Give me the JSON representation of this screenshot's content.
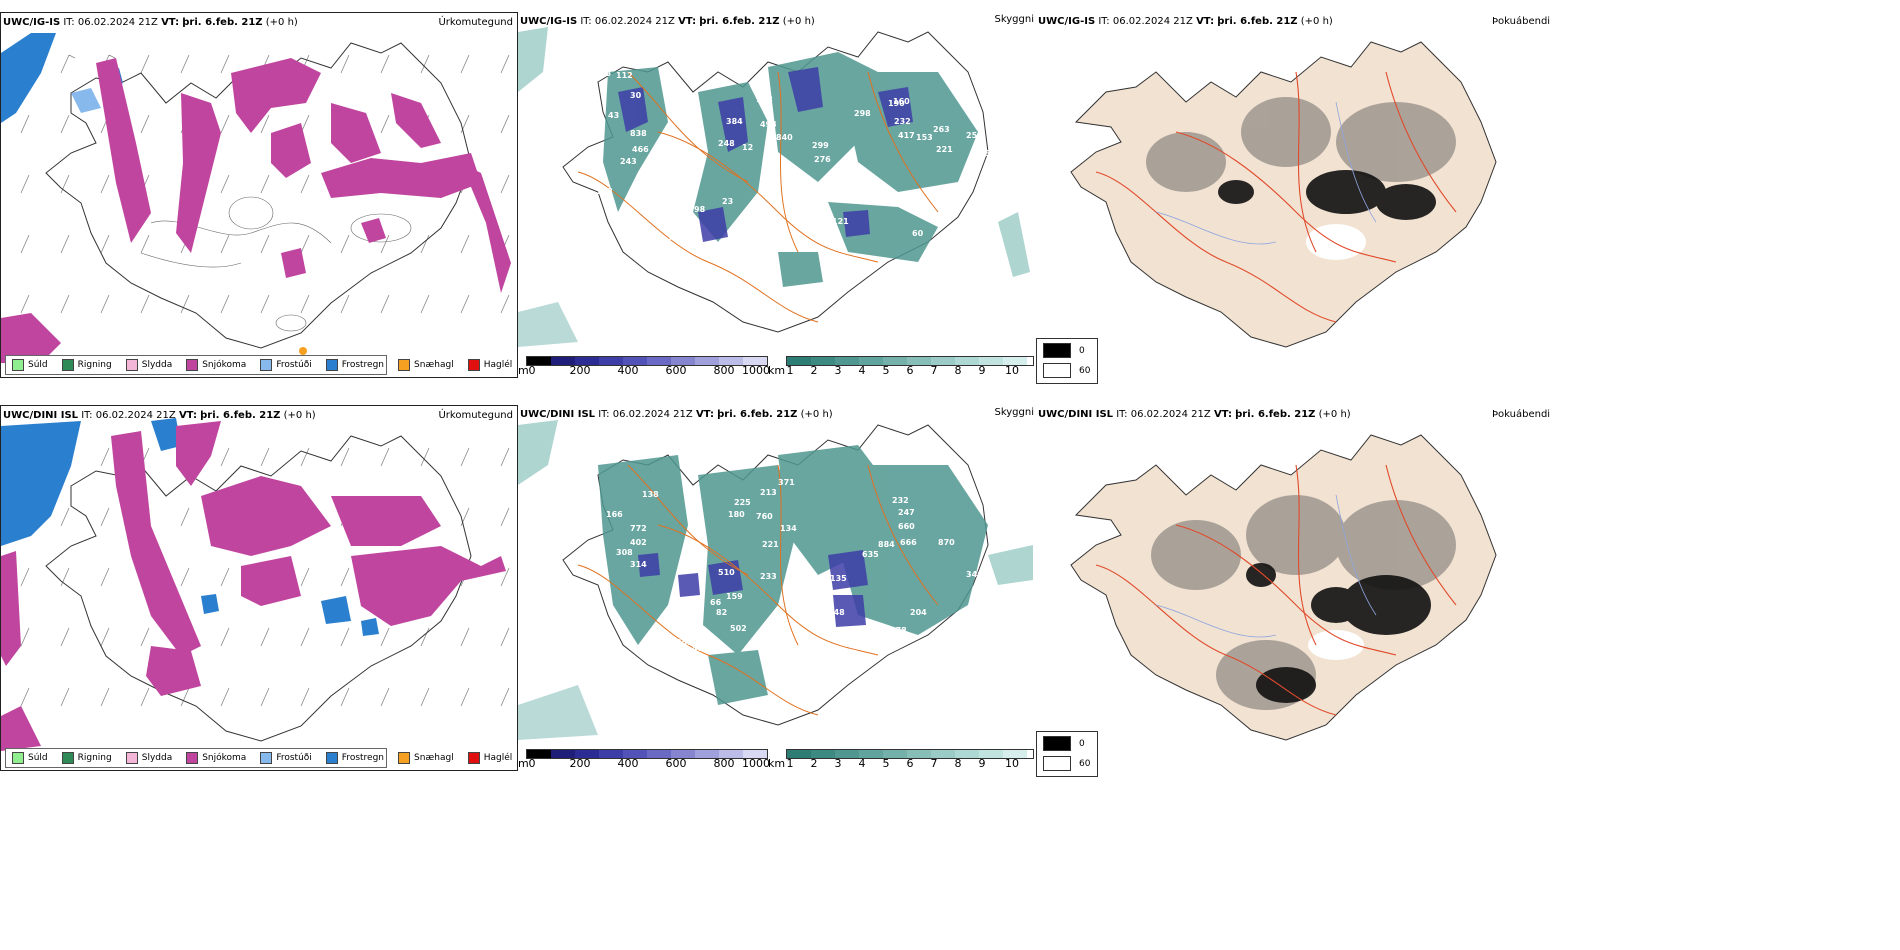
{
  "rows": [
    {
      "model": "UWC/IG-IS",
      "it_label": "IT:",
      "it_value": "06.02.2024 21Z",
      "vt_label": "VT:",
      "vt_value": "þri. 6.feb. 21Z",
      "lead": "(+0 h)",
      "p1_title": "Úrkomutegund",
      "p2_title": "Skyggni",
      "p3_title": "Þokuábendi",
      "cloud_labels": [
        "73",
        "112",
        "30",
        "43",
        "838",
        "466",
        "243",
        "128",
        "41",
        "72",
        "98",
        "23",
        "188",
        "384",
        "493",
        "840",
        "248",
        "299",
        "276",
        "12",
        "488",
        "121",
        "42",
        "160",
        "190",
        "298",
        "232",
        "417",
        "153",
        "251",
        "263",
        "221",
        "183",
        "60"
      ]
    },
    {
      "model": "UWC/DINI ISL",
      "it_label": "IT:",
      "it_value": "06.02.2024 21Z",
      "vt_label": "VT:",
      "vt_value": "þri. 6.feb. 21Z",
      "lead": "(+0 h)",
      "p1_title": "Úrkomutegund",
      "p2_title": "Skyggni",
      "p3_title": "Þokuábendi",
      "cloud_labels": [
        "138",
        "166",
        "772",
        "402",
        "308",
        "314",
        "225",
        "180",
        "760",
        "213",
        "371",
        "134",
        "221",
        "233",
        "510",
        "159",
        "66",
        "82",
        "84",
        "353",
        "200",
        "499",
        "502",
        "135",
        "148",
        "884",
        "635",
        "666",
        "660",
        "870",
        "247",
        "232",
        "346",
        "204",
        "178",
        "120",
        "60"
      ]
    }
  ],
  "precip_legend": [
    {
      "label": "Súld",
      "color": "#90ee90"
    },
    {
      "label": "Rigning",
      "color": "#2e8b57"
    },
    {
      "label": "Slydda",
      "color": "#f4b6d8"
    },
    {
      "label": "Snjókoma",
      "color": "#c0459f"
    },
    {
      "label": "Frostúði",
      "color": "#87b9ec"
    },
    {
      "label": "Frostregn",
      "color": "#2a7fcf"
    },
    {
      "label": "Snæhagl",
      "color": "#f5a020"
    },
    {
      "label": "Haglél",
      "color": "#e01010"
    }
  ],
  "vis_m": {
    "unit": "m",
    "ticks": [
      "0",
      "200",
      "400",
      "600",
      "800",
      "1000"
    ],
    "colors": [
      "#000000",
      "#1f1f7a",
      "#2c2c95",
      "#3e3ea8",
      "#5252b8",
      "#6a6ac4",
      "#8585d0",
      "#a0a0dc",
      "#bcbce8",
      "#d8d8f3"
    ]
  },
  "vis_km": {
    "unit": "km",
    "ticks": [
      "1",
      "2",
      "3",
      "4",
      "5",
      "6",
      "7",
      "8",
      "9",
      "10"
    ],
    "colors": [
      "#2d7d74",
      "#3d8a82",
      "#4f9790",
      "#61a49e",
      "#74b1ab",
      "#87beb8",
      "#9bcbc6",
      "#aed8d3",
      "#c2e4e0",
      "#d6efed"
    ]
  },
  "fog_legend": {
    "dark": "0",
    "light": "60"
  },
  "colors": {
    "snow": "#c0459f",
    "frz_rain": "#2a7fcf",
    "frz_drizzle": "#87b9ec",
    "vis_teal": "#4f9790",
    "vis_blue": "#3e3ea8",
    "road": "#e0711f",
    "fog_land": "#f2e2d2",
    "fog_road": "#e04a2a",
    "fog_river": "#8fa6e0"
  }
}
